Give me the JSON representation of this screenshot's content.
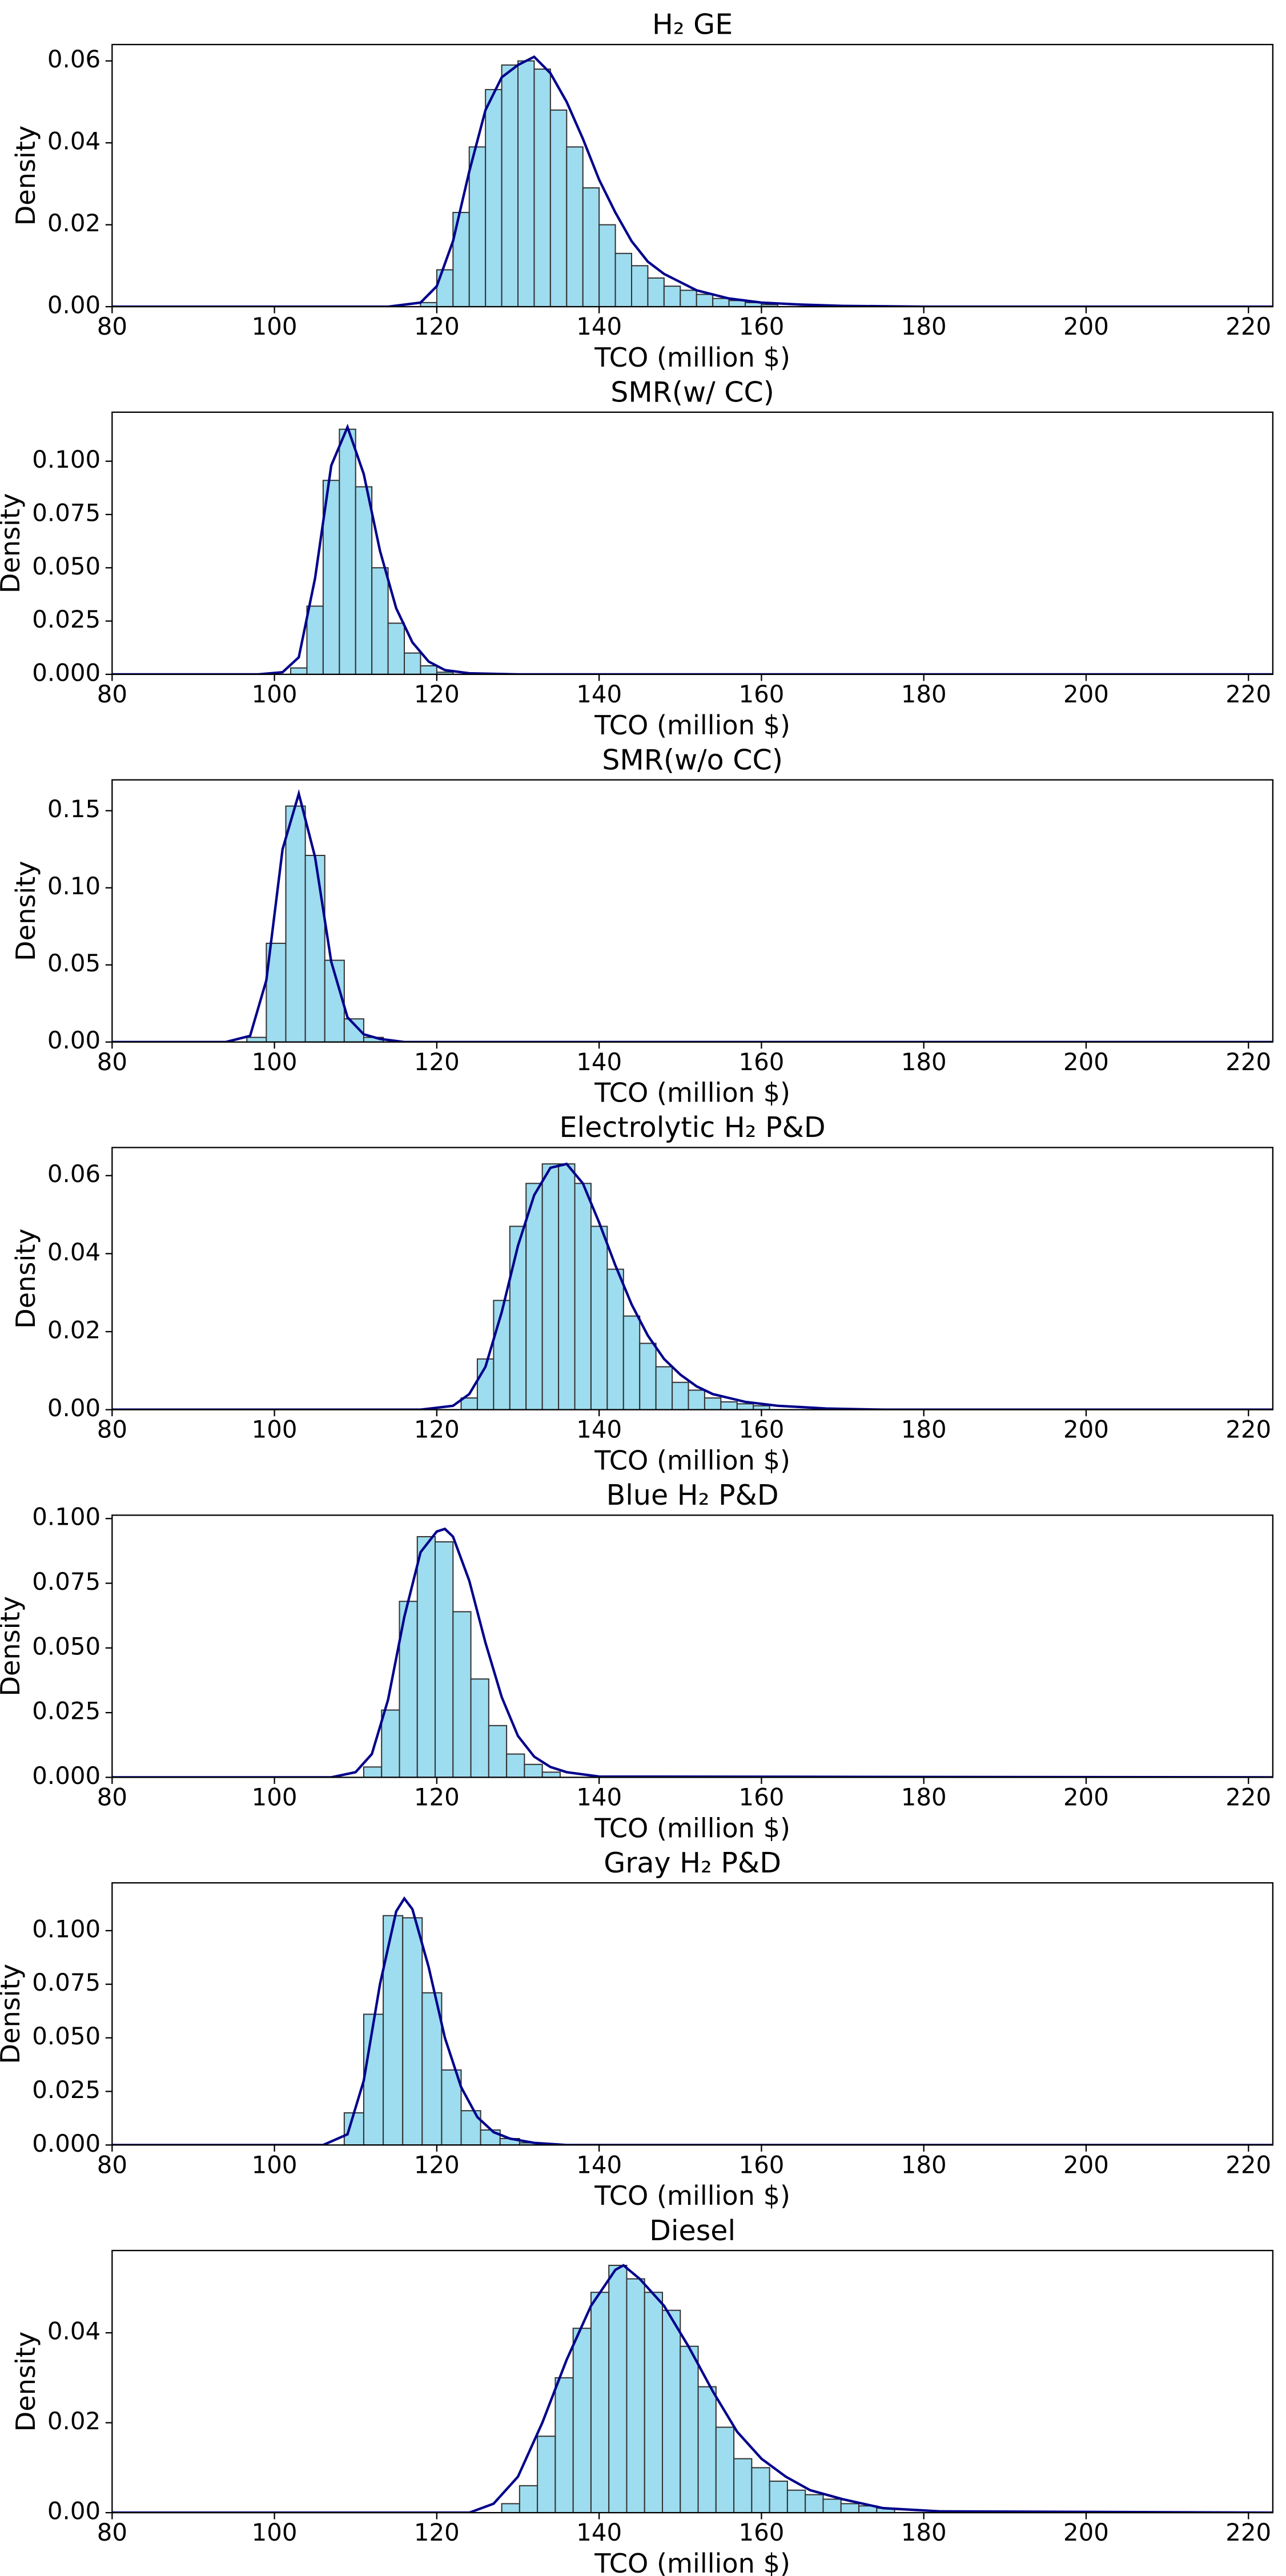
{
  "chart_data": [
    {
      "type": "histogram",
      "title": "H₂ GE",
      "xlabel": "TCO (million $)",
      "ylabel": "Density",
      "color": "#9edcef",
      "edge_color": "#333333",
      "line_color": "#00008b",
      "bins": [
        118,
        120,
        122,
        124,
        126,
        128,
        130,
        132,
        134,
        136,
        138,
        140,
        142,
        144,
        146,
        148,
        150,
        152,
        154,
        156,
        158,
        160,
        162
      ],
      "counts": [
        0.001,
        0.009,
        0.023,
        0.039,
        0.053,
        0.059,
        0.06,
        0.058,
        0.048,
        0.039,
        0.029,
        0.02,
        0.013,
        0.01,
        0.007,
        0.005,
        0.004,
        0.003,
        0.002,
        0.0015,
        0.001,
        0.0005
      ],
      "kde": {
        "x": [
          80,
          114,
          118,
          120,
          122,
          124,
          126,
          128,
          130,
          132,
          134,
          136,
          138,
          140,
          142,
          144,
          146,
          148,
          150,
          152,
          154,
          156,
          160,
          165,
          170,
          180,
          223
        ],
        "values": [
          0,
          0,
          0.001,
          0.005,
          0.016,
          0.033,
          0.048,
          0.056,
          0.059,
          0.061,
          0.057,
          0.05,
          0.041,
          0.031,
          0.023,
          0.016,
          0.011,
          0.008,
          0.006,
          0.004,
          0.003,
          0.002,
          0.001,
          0.0005,
          0.0002,
          0,
          0
        ]
      },
      "xlim": [
        80,
        223
      ],
      "xticks": [
        80,
        100,
        120,
        140,
        160,
        180,
        200,
        220
      ],
      "ylim": [
        0,
        0.064
      ],
      "yticks": [
        {
          "value": 0,
          "label": "0.00"
        },
        0.02,
        0.04,
        0.06
      ]
    },
    {
      "type": "histogram",
      "title": "SMR(w/ CC)",
      "xlabel": "TCO (million $)",
      "ylabel": "Density",
      "color": "#9edcef",
      "edge_color": "#333333",
      "line_color": "#00008b",
      "bins": [
        102,
        104,
        106,
        108,
        110,
        112,
        114,
        116,
        118,
        120,
        122
      ],
      "counts": [
        0.003,
        0.032,
        0.091,
        0.115,
        0.088,
        0.05,
        0.024,
        0.01,
        0.004,
        0.001
      ],
      "kde": {
        "x": [
          80,
          98,
          101,
          103,
          105,
          107,
          109,
          111,
          113,
          115,
          117,
          119,
          121,
          124,
          130,
          223
        ],
        "values": [
          0,
          0,
          0.001,
          0.008,
          0.045,
          0.098,
          0.116,
          0.094,
          0.058,
          0.031,
          0.015,
          0.006,
          0.002,
          0.0005,
          0,
          0
        ]
      },
      "xlim": [
        80,
        223
      ],
      "xticks": [
        80,
        100,
        120,
        140,
        160,
        180,
        200,
        220
      ],
      "ylim": [
        0,
        0.123
      ],
      "yticks": [
        {
          "value": 0,
          "label": "0.000"
        },
        0.025,
        {
          "value": 0.05,
          "label": "0.050"
        },
        0.075,
        {
          "value": 0.1,
          "label": "0.100"
        }
      ]
    },
    {
      "type": "histogram",
      "title": "SMR(w/o CC)",
      "xlabel": "TCO (million $)",
      "ylabel": "Density",
      "color": "#9edcef",
      "edge_color": "#333333",
      "line_color": "#00008b",
      "bins": [
        96.6,
        99,
        101.4,
        103.8,
        106.2,
        108.6,
        111,
        113.4
      ],
      "counts": [
        0.003,
        0.064,
        0.153,
        0.121,
        0.053,
        0.015,
        0.003
      ],
      "kde": {
        "x": [
          80,
          94,
          97,
          99,
          101,
          103,
          105,
          107,
          109,
          111,
          113,
          116,
          223
        ],
        "values": [
          0,
          0,
          0.004,
          0.04,
          0.125,
          0.161,
          0.12,
          0.052,
          0.016,
          0.005,
          0.002,
          0,
          0
        ]
      },
      "xlim": [
        80,
        223
      ],
      "xticks": [
        80,
        100,
        120,
        140,
        160,
        180,
        200,
        220
      ],
      "ylim": [
        0,
        0.17
      ],
      "yticks": [
        {
          "value": 0,
          "label": "0.00"
        },
        0.05,
        {
          "value": 0.1,
          "label": "0.10"
        },
        0.15
      ]
    },
    {
      "type": "histogram",
      "title": "Electrolytic H₂ P&D",
      "xlabel": "TCO (million $)",
      "ylabel": "Density",
      "color": "#9edcef",
      "edge_color": "#333333",
      "line_color": "#00008b",
      "bins": [
        123,
        125,
        127,
        129,
        131,
        133,
        135,
        137,
        139,
        141,
        143,
        145,
        147,
        149,
        151,
        153,
        155,
        157,
        159,
        161
      ],
      "counts": [
        0.003,
        0.013,
        0.028,
        0.047,
        0.058,
        0.063,
        0.063,
        0.058,
        0.047,
        0.036,
        0.024,
        0.017,
        0.011,
        0.007,
        0.005,
        0.003,
        0.002,
        0.0015,
        0.001
      ],
      "kde": {
        "x": [
          80,
          118,
          122,
          124,
          126,
          128,
          130,
          132,
          134,
          136,
          138,
          140,
          142,
          144,
          146,
          148,
          150,
          152,
          154,
          156,
          158,
          162,
          168,
          175,
          223
        ],
        "values": [
          0,
          0,
          0.001,
          0.004,
          0.011,
          0.025,
          0.042,
          0.055,
          0.062,
          0.063,
          0.058,
          0.048,
          0.037,
          0.027,
          0.019,
          0.013,
          0.009,
          0.006,
          0.004,
          0.003,
          0.002,
          0.001,
          0.0003,
          0,
          0
        ]
      },
      "xlim": [
        80,
        223
      ],
      "xticks": [
        80,
        100,
        120,
        140,
        160,
        180,
        200,
        220
      ],
      "ylim": [
        0,
        0.0672
      ],
      "yticks": [
        {
          "value": 0,
          "label": "0.00"
        },
        0.02,
        0.04,
        0.06
      ]
    },
    {
      "type": "histogram",
      "title": "Blue H₂ P&D",
      "xlabel": "TCO (million $)",
      "ylabel": "Density",
      "color": "#9edcef",
      "edge_color": "#333333",
      "line_color": "#00008b",
      "bins": [
        111,
        113.2,
        115.4,
        117.6,
        119.8,
        122,
        124.2,
        126.4,
        128.6,
        130.8,
        133,
        135.2
      ],
      "counts": [
        0.004,
        0.026,
        0.068,
        0.093,
        0.091,
        0.064,
        0.038,
        0.02,
        0.009,
        0.005,
        0.002
      ],
      "kde": {
        "x": [
          80,
          107,
          110,
          112,
          114,
          116,
          118,
          120,
          121,
          122,
          124,
          126,
          128,
          130,
          132,
          134,
          136,
          140,
          223
        ],
        "values": [
          0,
          0,
          0.002,
          0.009,
          0.03,
          0.062,
          0.087,
          0.095,
          0.096,
          0.093,
          0.076,
          0.052,
          0.031,
          0.016,
          0.008,
          0.004,
          0.002,
          0.0003,
          0
        ]
      },
      "xlim": [
        80,
        223
      ],
      "xticks": [
        80,
        100,
        120,
        140,
        160,
        180,
        200,
        220
      ],
      "ylim": [
        0,
        0.1013
      ],
      "yticks": [
        {
          "value": 0,
          "label": "0.000"
        },
        0.025,
        {
          "value": 0.05,
          "label": "0.050"
        },
        0.075,
        {
          "value": 0.1,
          "label": "0.100"
        }
      ]
    },
    {
      "type": "histogram",
      "title": "Gray H₂ P&D",
      "xlabel": "TCO (million $)",
      "ylabel": "Density",
      "color": "#9edcef",
      "edge_color": "#333333",
      "line_color": "#00008b",
      "bins": [
        108.6,
        111,
        113.4,
        115.8,
        118.2,
        120.6,
        123,
        125.4,
        127.8,
        130.2,
        132.6
      ],
      "counts": [
        0.015,
        0.061,
        0.107,
        0.106,
        0.071,
        0.035,
        0.016,
        0.007,
        0.003,
        0.001
      ],
      "kde": {
        "x": [
          80,
          106,
          109,
          111,
          113,
          115,
          116,
          117,
          119,
          121,
          123,
          125,
          127,
          129,
          132,
          136,
          223
        ],
        "values": [
          0,
          0,
          0.005,
          0.03,
          0.075,
          0.109,
          0.115,
          0.11,
          0.083,
          0.05,
          0.027,
          0.013,
          0.006,
          0.003,
          0.001,
          0,
          0
        ]
      },
      "xlim": [
        80,
        223
      ],
      "xticks": [
        80,
        100,
        120,
        140,
        160,
        180,
        200,
        220
      ],
      "ylim": [
        0,
        0.1223
      ],
      "yticks": [
        {
          "value": 0,
          "label": "0.000"
        },
        0.025,
        {
          "value": 0.05,
          "label": "0.050"
        },
        0.075,
        {
          "value": 0.1,
          "label": "0.100"
        }
      ]
    },
    {
      "type": "histogram",
      "title": "Diesel",
      "xlabel": "TCO (million $)",
      "ylabel": "Density",
      "color": "#9edcef",
      "edge_color": "#333333",
      "line_color": "#00008b",
      "bins": [
        128,
        130.2,
        132.4,
        134.6,
        136.8,
        139,
        141.2,
        143.4,
        145.6,
        147.8,
        150,
        152.2,
        154.4,
        156.6,
        158.8,
        161,
        163.2,
        165.4,
        167.6,
        169.8,
        172,
        174.2,
        176.4
      ],
      "counts": [
        0.002,
        0.006,
        0.017,
        0.03,
        0.041,
        0.049,
        0.055,
        0.052,
        0.049,
        0.045,
        0.037,
        0.028,
        0.019,
        0.012,
        0.01,
        0.007,
        0.005,
        0.004,
        0.003,
        0.002,
        0.0015,
        0.001
      ],
      "kde": {
        "x": [
          80,
          124,
          127,
          130,
          133,
          136,
          139,
          142,
          143,
          145,
          148,
          151,
          154,
          157,
          160,
          163,
          166,
          170,
          175,
          182,
          223
        ],
        "values": [
          0,
          0,
          0.002,
          0.008,
          0.02,
          0.034,
          0.046,
          0.054,
          0.055,
          0.052,
          0.046,
          0.037,
          0.027,
          0.018,
          0.012,
          0.008,
          0.005,
          0.003,
          0.001,
          0.0003,
          0
        ]
      },
      "xlim": [
        80,
        223
      ],
      "xticks": [
        80,
        100,
        120,
        140,
        160,
        180,
        200,
        220
      ],
      "ylim": [
        0,
        0.0583
      ],
      "yticks": [
        {
          "value": 0,
          "label": "0.00"
        },
        0.02,
        0.04
      ]
    }
  ]
}
